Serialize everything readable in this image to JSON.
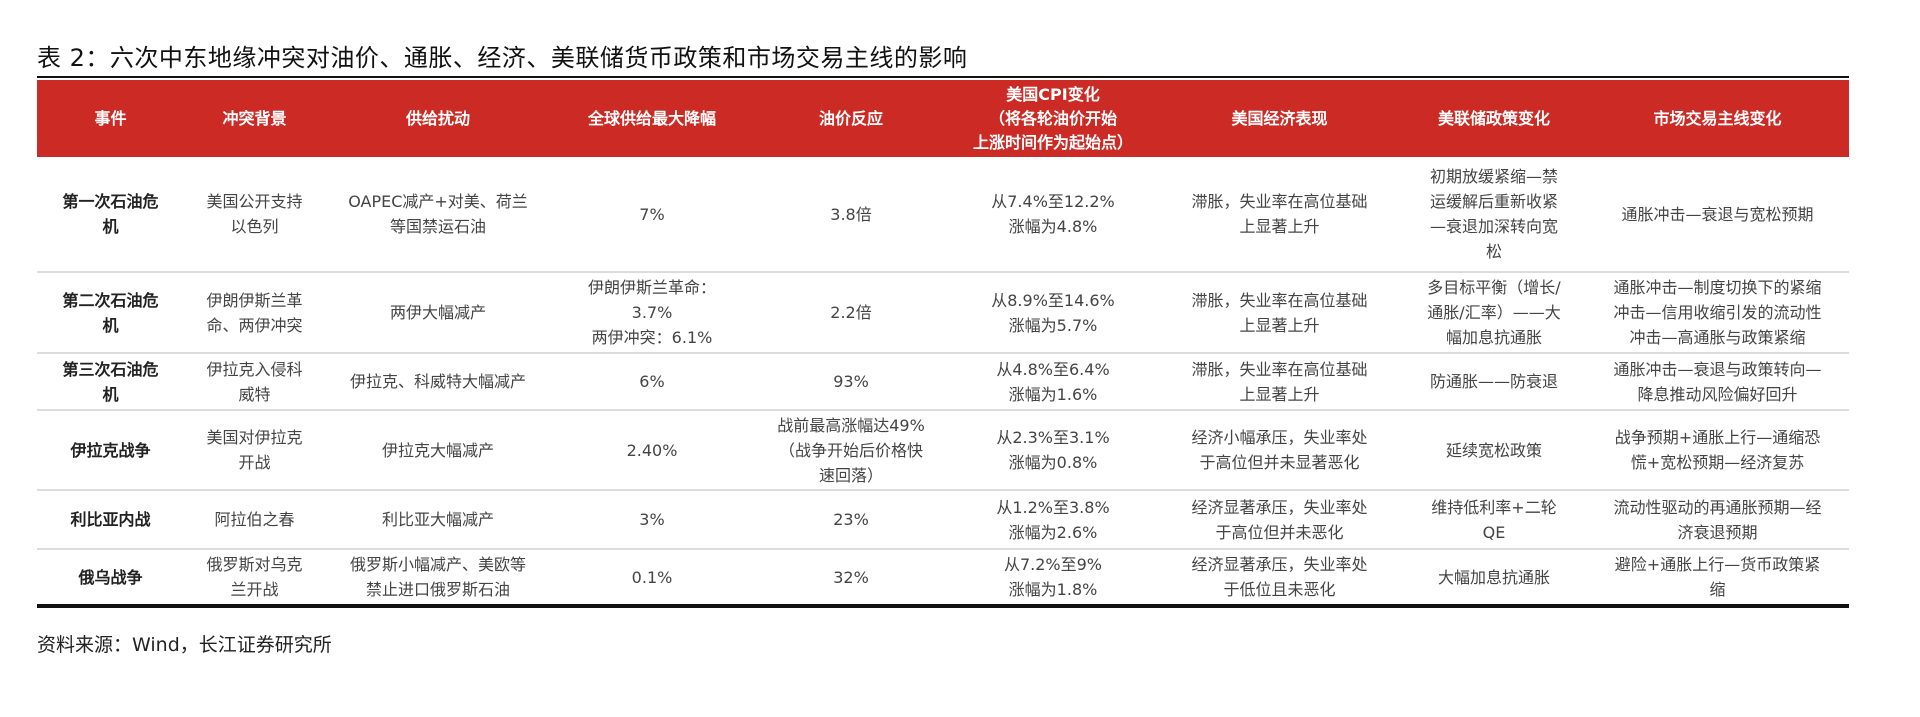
{
  "title": "表 2：六次中东地缘冲突对油价、通胀、经济、美联储货币政策和市场交易主线的影响",
  "header_color": "#cc2a24",
  "columns": [
    "事件",
    "冲突背景",
    "供给扰动",
    "全球供给最大降幅",
    "油价反应",
    "美国CPI变化\n（将各轮油价开始\n上涨时间作为起始点）",
    "美国经济表现",
    "美联储政策变化",
    "市场交易主线变化"
  ],
  "rows": [
    [
      "第一次石油危\n机",
      "美国公开支持\n以色列",
      "OAPEC减产+对美、荷兰\n等国禁运石油",
      "7%",
      "3.8倍",
      "从7.4%至12.2%\n涨幅为4.8%",
      "滞胀，失业率在高位基础\n上显著上升",
      "初期放缓紧缩—禁\n运缓解后重新收紧\n—衰退加深转向宽\n松",
      "通胀冲击—衰退与宽松预期"
    ],
    [
      "第二次石油危\n机",
      "伊朗伊斯兰革\n命、两伊冲突",
      "两伊大幅减产",
      "伊朗伊斯兰革命：\n3.7%\n两伊冲突：6.1%",
      "2.2倍",
      "从8.9%至14.6%\n涨幅为5.7%",
      "滞胀，失业率在高位基础\n上显著上升",
      "多目标平衡（增长/\n通胀/汇率）——大\n幅加息抗通胀",
      "通胀冲击—制度切换下的紧缩\n冲击—信用收缩引发的流动性\n冲击—高通胀与政策紧缩"
    ],
    [
      "第三次石油危\n机",
      "伊拉克入侵科\n威特",
      "伊拉克、科威特大幅减产",
      "6%",
      "93%",
      "从4.8%至6.4%\n涨幅为1.6%",
      "滞胀，失业率在高位基础\n上显著上升",
      "防通胀——防衰退",
      "通胀冲击—衰退与政策转向—\n降息推动风险偏好回升"
    ],
    [
      "伊拉克战争",
      "美国对伊拉克\n开战",
      "伊拉克大幅减产",
      "2.40%",
      "战前最高涨幅达49%\n（战争开始后价格快\n速回落）",
      "从2.3%至3.1%\n涨幅为0.8%",
      "经济小幅承压，失业率处\n于高位但并未显著恶化",
      "延续宽松政策",
      "战争预期+通胀上行—通缩恐\n慌+宽松预期—经济复苏"
    ],
    [
      "利比亚内战",
      "阿拉伯之春",
      "利比亚大幅减产",
      "3%",
      "23%",
      "从1.2%至3.8%\n涨幅为2.6%",
      "经济显著承压，失业率处\n于高位但并未恶化",
      "维持低利率+二轮\nQE",
      "流动性驱动的再通胀预期—经\n济衰退预期"
    ],
    [
      "俄乌战争",
      "俄罗斯对乌克\n兰开战",
      "俄罗斯小幅减产、美欧等\n禁止进口俄罗斯石油",
      "0.1%",
      "32%",
      "从7.2%至9%\n涨幅为1.8%",
      "经济显著承压，失业率处\n于低位且未恶化",
      "大幅加息抗通胀",
      "避险+通胀上行—货币政策紧\n缩"
    ]
  ],
  "source": "资料来源：Wind，长江证券研究所"
}
